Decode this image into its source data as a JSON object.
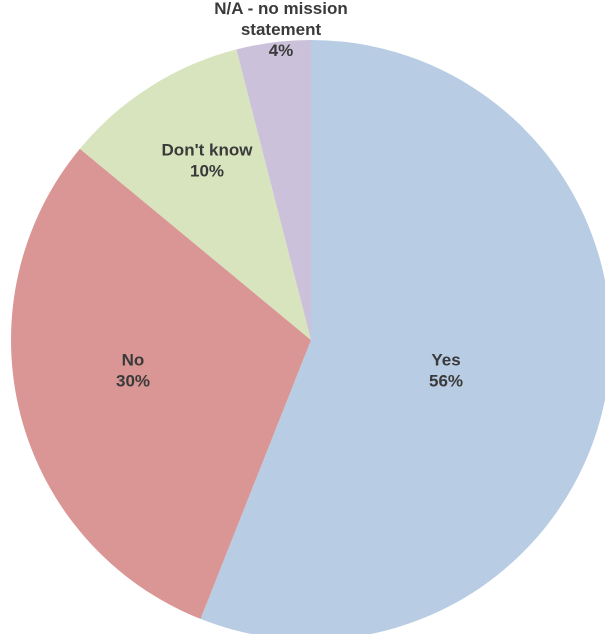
{
  "chart_data": {
    "type": "pie",
    "start_angle_deg": 0,
    "direction": "clockwise",
    "title": "",
    "legend": "none",
    "slices": [
      {
        "label": [
          "Yes"
        ],
        "value": 56,
        "value_label": "56%",
        "color": "#b8cce4"
      },
      {
        "label": [
          "No"
        ],
        "value": 30,
        "value_label": "30%",
        "color": "#d99694"
      },
      {
        "label": [
          "Don't know"
        ],
        "value": 10,
        "value_label": "10%",
        "color": "#d7e4bd"
      },
      {
        "label": [
          "N/A - no mission",
          "statement"
        ],
        "value": 4,
        "value_label": "4%",
        "color": "#ccc1da"
      }
    ]
  }
}
